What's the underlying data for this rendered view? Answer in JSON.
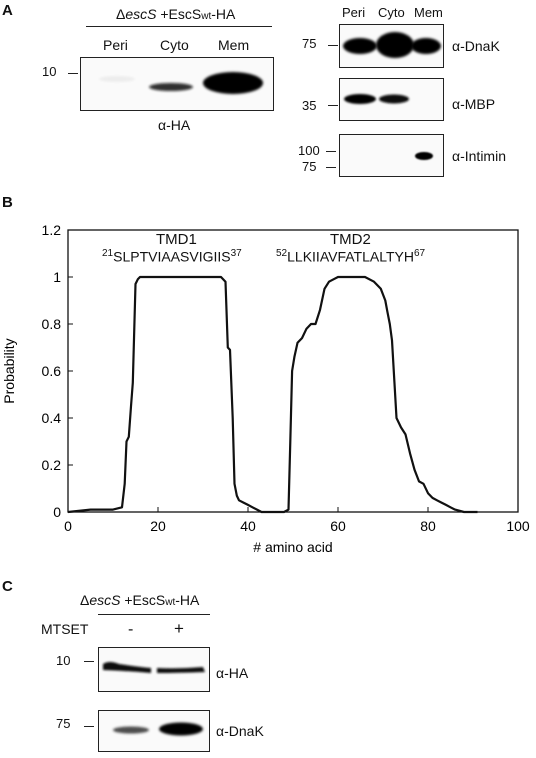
{
  "panel_a": {
    "letter": "A",
    "strain_prefix": "Δ",
    "strain_gene": "escS",
    "strain_suffix": " +EscS",
    "strain_sub": "wt",
    "strain_tag": "-HA",
    "lanes_left": [
      "Peri",
      "Cyto",
      "Mem"
    ],
    "marker_left": "10",
    "antibody_left": "α-HA",
    "lanes_right": [
      "Peri",
      "Cyto",
      "Mem"
    ],
    "right_blots": [
      {
        "markers": [
          "75"
        ],
        "antibody": "α-DnaK"
      },
      {
        "markers": [
          "35"
        ],
        "antibody": "α-MBP"
      },
      {
        "markers": [
          "100",
          "75"
        ],
        "antibody": "α-Intimin"
      }
    ]
  },
  "panel_b": {
    "letter": "B",
    "tmd1_title": "TMD1",
    "tmd1_seq_start": "21",
    "tmd1_seq": "SLPTVIAASVIGIIS",
    "tmd1_seq_end": "37",
    "tmd2_title": "TMD2",
    "tmd2_seq_start": "52",
    "tmd2_seq": "LLKIIAVFATLALTYH",
    "tmd2_seq_end": "67"
  },
  "panel_c": {
    "letter": "C",
    "strain_prefix": "Δ",
    "strain_gene": "escS",
    "strain_suffix": " +EscS",
    "strain_sub": "wt",
    "strain_tag": "-HA",
    "treatment": "MTSET",
    "conditions": [
      "-",
      "+"
    ],
    "blots": [
      {
        "marker": "10",
        "antibody": "α-HA"
      },
      {
        "marker": "75",
        "antibody": "α-DnaK"
      }
    ]
  },
  "chart_data": {
    "type": "line",
    "title": "",
    "xlabel": "# amino acid",
    "ylabel": "Probability",
    "xlim": [
      0,
      100
    ],
    "ylim": [
      0,
      1.2
    ],
    "xticks": [
      0,
      20,
      40,
      60,
      80,
      100
    ],
    "yticks": [
      0,
      0.2,
      0.4,
      0.6,
      0.8,
      1,
      1.2
    ],
    "ytick_labels": [
      "0",
      "0.2",
      "0.4",
      "0.6",
      "0.8",
      "1",
      "1.2"
    ],
    "grid": false,
    "series": [
      {
        "x": [
          0,
          5,
          10,
          12,
          12.6,
          13,
          13.5,
          14,
          14.4,
          15,
          15.5,
          16,
          20,
          25,
          30,
          34,
          35,
          35.5,
          36,
          36.6,
          37,
          37.5,
          38,
          39,
          40,
          41,
          42,
          43,
          45,
          48,
          49,
          49.4,
          49.8,
          50.3,
          51,
          52,
          53,
          54,
          55,
          56,
          57,
          58,
          59,
          60,
          62,
          64,
          66,
          68,
          69.5,
          70.5,
          71,
          71.5,
          72,
          73,
          74,
          75,
          76,
          77,
          78,
          79,
          80,
          81,
          82,
          83,
          84,
          85,
          86,
          88,
          91
        ],
        "y": [
          0,
          0.01,
          0.01,
          0.02,
          0.12,
          0.3,
          0.32,
          0.45,
          0.55,
          0.97,
          0.99,
          1.0,
          1.0,
          1.0,
          1.0,
          1.0,
          0.98,
          0.7,
          0.69,
          0.4,
          0.12,
          0.07,
          0.05,
          0.04,
          0.03,
          0.02,
          0.01,
          0.0,
          0.0,
          0.0,
          0.01,
          0.3,
          0.6,
          0.66,
          0.72,
          0.74,
          0.78,
          0.8,
          0.8,
          0.86,
          0.95,
          0.98,
          0.99,
          1.0,
          1.0,
          1.0,
          1.0,
          0.98,
          0.95,
          0.9,
          0.85,
          0.8,
          0.73,
          0.4,
          0.36,
          0.33,
          0.25,
          0.18,
          0.13,
          0.12,
          0.08,
          0.06,
          0.05,
          0.04,
          0.03,
          0.02,
          0.01,
          0.0,
          0.0
        ]
      }
    ]
  }
}
